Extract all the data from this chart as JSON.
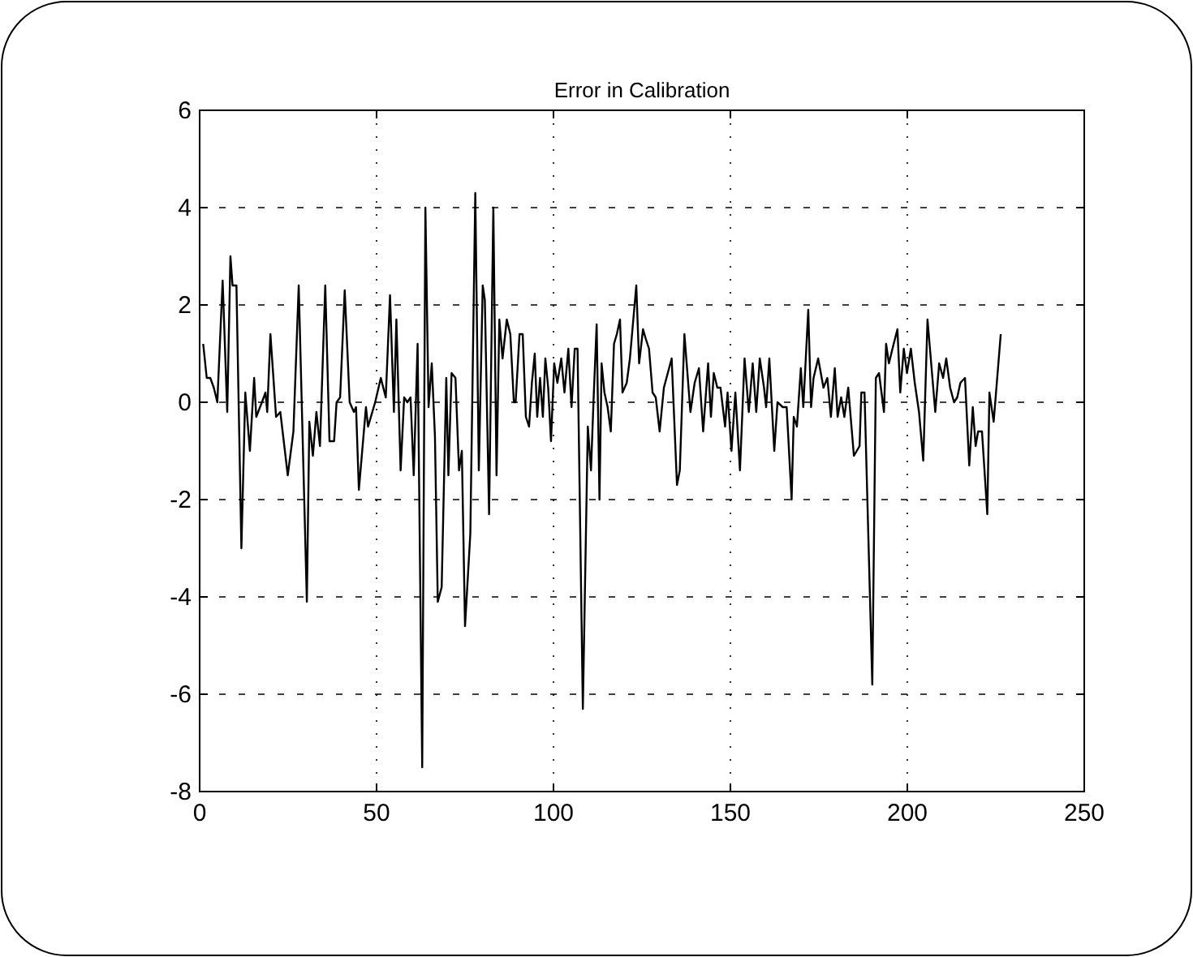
{
  "chart_data": {
    "type": "line",
    "title": "Error in Calibration",
    "xlim": [
      0,
      250
    ],
    "ylim": [
      -8,
      6
    ],
    "xticks": [
      0,
      50,
      100,
      150,
      200,
      250
    ],
    "yticks": [
      -8,
      -6,
      -4,
      -2,
      0,
      2,
      4,
      6
    ],
    "grid": true,
    "marker": "none",
    "line_style": "solid",
    "series": [
      {
        "color": "#000000",
        "x": [
          1,
          2,
          3,
          4,
          5,
          6.5,
          7.8,
          8.7,
          9.3,
          10.4,
          11.8,
          12.9,
          14.2,
          15.4,
          16,
          17.6,
          18.6,
          19.1,
          20,
          21.6,
          22.8,
          24.9,
          26.5,
          28,
          30.3,
          31,
          32,
          33,
          34,
          35.5,
          36.7,
          38,
          38.7,
          39.7,
          41,
          42.4,
          43.6,
          44.2,
          45,
          47,
          47.6,
          49.6,
          51.2,
          52.6,
          53.8,
          54.9,
          55.6,
          56.8,
          57.8,
          58.7,
          59.6,
          60.5,
          61.6,
          62.9,
          63.8,
          64.7,
          65.6,
          66.5,
          67.3,
          68.4,
          69.7,
          70.3,
          71.2,
          72.3,
          73.3,
          74.1,
          75,
          76.5,
          77.9,
          78.9,
          80,
          80.6,
          81.8,
          83,
          83.9,
          84.7,
          85.6,
          86.8,
          87.8,
          88.8,
          89.3,
          90.4,
          91.3,
          92.2,
          93.1,
          93.9,
          94.7,
          95.4,
          96.2,
          97,
          97.7,
          98.5,
          99.3,
          100.2,
          101.1,
          102.2,
          103.1,
          104.2,
          105.1,
          106,
          106.8,
          108.3,
          109.7,
          110.6,
          111.3,
          112.2,
          113,
          113.6,
          114.4,
          115.3,
          116.2,
          117.1,
          117.9,
          118.8,
          119.5,
          120.7,
          121.6,
          123.4,
          124.2,
          125.3,
          126.1,
          127,
          128,
          128.9,
          130,
          131.2,
          133.4,
          134.9,
          135.7,
          137,
          138.7,
          139.9,
          141.1,
          142.3,
          143.7,
          144.5,
          145.3,
          146.3,
          147.2,
          148.5,
          149.2,
          150.3,
          151.4,
          152.7,
          154,
          155.2,
          156.3,
          157.3,
          158.3,
          159.5,
          160.1,
          161,
          162.4,
          163.3,
          164.8,
          165.9,
          167.3,
          167.9,
          168.8,
          169.9,
          170.6,
          172,
          172.8,
          173.5,
          174.8,
          176.3,
          177.4,
          178.4,
          179.5,
          180.3,
          181.3,
          182.2,
          183.3,
          184.9,
          186.5,
          187,
          187.9,
          190.1,
          191.1,
          192,
          193.4,
          194,
          194.8,
          195.8,
          197.2,
          198,
          199,
          199.9,
          201,
          202.1,
          203.3,
          204.5,
          205.7,
          207.9,
          209,
          210.1,
          211,
          212.1,
          213.2,
          214.1,
          215,
          216.3,
          217.5,
          218.5,
          219.3,
          220,
          221.1,
          222.6,
          223.2,
          224.4,
          226.4
        ],
        "values": [
          1.2,
          0.5,
          0.5,
          0.3,
          0,
          2.5,
          -0.2,
          3.0,
          2.4,
          2.4,
          -3.0,
          0.2,
          -1.0,
          0.5,
          -0.3,
          0,
          0.2,
          -0.2,
          1.4,
          -0.3,
          -0.2,
          -1.5,
          -0.6,
          2.4,
          -4.1,
          -0.4,
          -1.1,
          -0.2,
          -0.9,
          2.4,
          -0.8,
          -0.8,
          0,
          0.1,
          2.3,
          0,
          -0.2,
          -0.1,
          -1.8,
          -0.1,
          -0.5,
          0,
          0.5,
          0.1,
          2.2,
          -0.2,
          1.7,
          -1.4,
          0.1,
          0,
          0.1,
          -1.5,
          1.2,
          -7.5,
          4.0,
          -0.1,
          0.8,
          -0.7,
          -4.1,
          -3.8,
          0.5,
          -1.5,
          0.6,
          0.5,
          -1.4,
          -1.0,
          -4.6,
          -2.7,
          4.3,
          -1.4,
          2.4,
          2.1,
          -2.3,
          4.0,
          -1.5,
          1.7,
          0.9,
          1.7,
          1.4,
          0,
          0,
          1.4,
          1.4,
          -0.3,
          -0.5,
          0.4,
          1.0,
          -0.3,
          0.5,
          -0.3,
          0.9,
          0.3,
          -0.8,
          0.8,
          0.4,
          0.9,
          0.2,
          1.1,
          -0.1,
          1.1,
          1.1,
          -6.3,
          -0.5,
          -1.4,
          0,
          1.6,
          -2.0,
          0.8,
          0.2,
          -0.1,
          -0.6,
          1.2,
          1.4,
          1.7,
          0.2,
          0.4,
          0.9,
          2.4,
          0.8,
          1.5,
          1.3,
          1.1,
          0.2,
          0.1,
          -0.6,
          0.3,
          0.9,
          -1.7,
          -1.4,
          1.4,
          -0.2,
          0.4,
          0.7,
          -0.6,
          0.8,
          -0.3,
          0.6,
          0.3,
          0.3,
          -0.5,
          0.2,
          -1.0,
          0.2,
          -1.4,
          0.9,
          -0.2,
          0.8,
          -0.2,
          0.9,
          0.3,
          -0.1,
          0.9,
          -1.0,
          0,
          -0.1,
          -0.1,
          -2.0,
          -0.3,
          -0.5,
          0.7,
          -0.1,
          1.9,
          -0.1,
          0.5,
          0.9,
          0.3,
          0.5,
          -0.3,
          0.7,
          -0.3,
          0.1,
          -0.3,
          0.3,
          -1.1,
          -0.9,
          0.2,
          0.2,
          -5.8,
          0.5,
          0.6,
          -0.2,
          1.2,
          0.8,
          1.1,
          1.5,
          0.2,
          1.1,
          0.6,
          1.1,
          0.4,
          -0.2,
          -1.2,
          1.7,
          -0.2,
          0.8,
          0.5,
          0.9,
          0.3,
          0,
          0.1,
          0.4,
          0.5,
          -1.3,
          -0.1,
          -0.9,
          -0.6,
          -0.6,
          -2.3,
          0.2,
          -0.4,
          1.4
        ]
      }
    ]
  }
}
